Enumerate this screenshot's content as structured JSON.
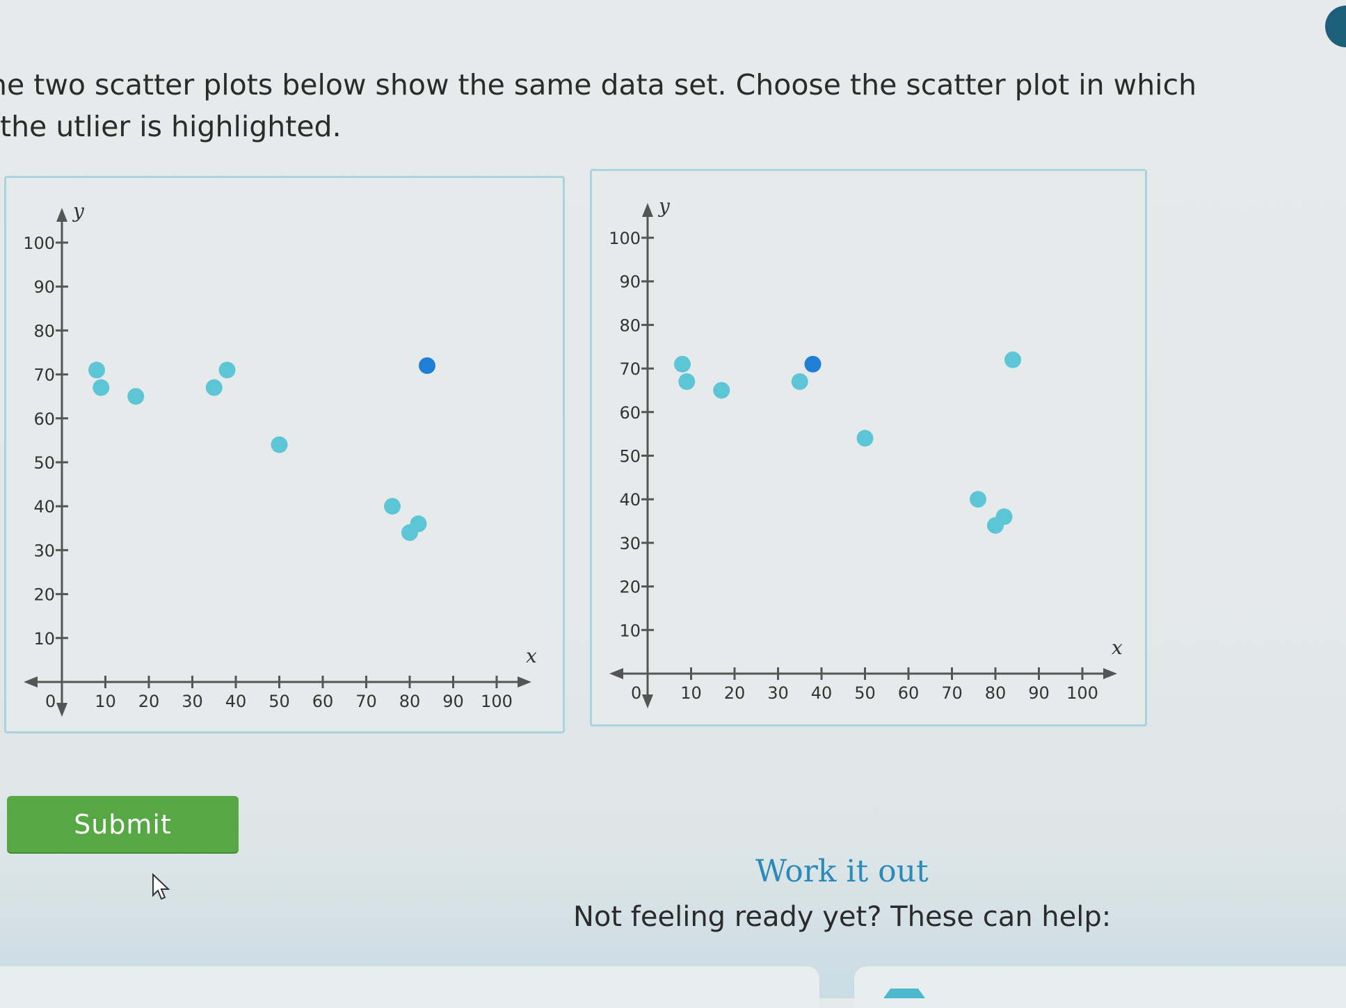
{
  "question": {
    "text": "he two scatter plots below show the same data set. Choose the scatter plot in which the utlier is highlighted."
  },
  "colors": {
    "point_default": "#5cc6d6",
    "point_highlight": "#1f7fd6",
    "submit_bg": "#55a843",
    "link": "#2a8ab8"
  },
  "chart_data": [
    {
      "type": "scatter",
      "title": "",
      "xlabel": "x",
      "ylabel": "y",
      "xlim": [
        0,
        100
      ],
      "ylim": [
        0,
        100
      ],
      "x_ticks": [
        "10",
        "20",
        "30",
        "40",
        "50",
        "60",
        "70",
        "80",
        "90",
        "100"
      ],
      "y_ticks": [
        "10",
        "20",
        "30",
        "40",
        "50",
        "60",
        "70",
        "80",
        "90",
        "100"
      ],
      "origin_label": "0",
      "points": [
        {
          "x": 8,
          "y": 71,
          "highlight": false
        },
        {
          "x": 9,
          "y": 67,
          "highlight": false
        },
        {
          "x": 17,
          "y": 65,
          "highlight": false
        },
        {
          "x": 35,
          "y": 67,
          "highlight": false
        },
        {
          "x": 38,
          "y": 71,
          "highlight": false
        },
        {
          "x": 50,
          "y": 54,
          "highlight": false
        },
        {
          "x": 76,
          "y": 40,
          "highlight": false
        },
        {
          "x": 80,
          "y": 34,
          "highlight": false
        },
        {
          "x": 82,
          "y": 36,
          "highlight": false
        },
        {
          "x": 84,
          "y": 72,
          "highlight": true
        }
      ]
    },
    {
      "type": "scatter",
      "title": "",
      "xlabel": "x",
      "ylabel": "y",
      "xlim": [
        0,
        100
      ],
      "ylim": [
        0,
        100
      ],
      "x_ticks": [
        "10",
        "20",
        "30",
        "40",
        "50",
        "60",
        "70",
        "80",
        "90",
        "100"
      ],
      "y_ticks": [
        "10",
        "20",
        "30",
        "40",
        "50",
        "60",
        "70",
        "80",
        "90",
        "100"
      ],
      "origin_label": "0",
      "points": [
        {
          "x": 8,
          "y": 71,
          "highlight": false
        },
        {
          "x": 9,
          "y": 67,
          "highlight": false
        },
        {
          "x": 17,
          "y": 65,
          "highlight": false
        },
        {
          "x": 35,
          "y": 67,
          "highlight": false
        },
        {
          "x": 38,
          "y": 71,
          "highlight": true
        },
        {
          "x": 50,
          "y": 54,
          "highlight": false
        },
        {
          "x": 76,
          "y": 40,
          "highlight": false
        },
        {
          "x": 80,
          "y": 34,
          "highlight": false
        },
        {
          "x": 82,
          "y": 36,
          "highlight": false
        },
        {
          "x": 84,
          "y": 72,
          "highlight": false
        }
      ]
    }
  ],
  "submit": {
    "label": "Submit"
  },
  "help": {
    "work_it_out": "Work it out",
    "not_ready": "Not feeling ready yet? These can help:"
  }
}
